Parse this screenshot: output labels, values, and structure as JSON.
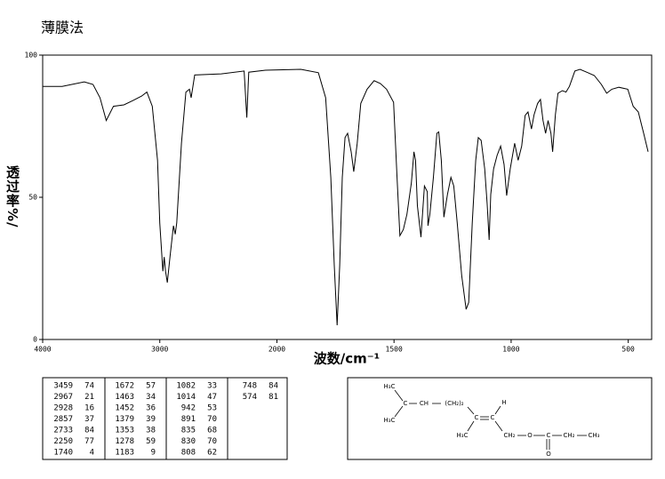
{
  "chart_data": {
    "type": "line",
    "title": "薄膜法",
    "xlabel": "波数/cm⁻¹",
    "ylabel": "透过率%/",
    "xscale": "piecewise",
    "xlim": [
      4000,
      400
    ],
    "xticks": [
      4000,
      3000,
      2000,
      1500,
      1000,
      500
    ],
    "ylim": [
      0,
      100
    ],
    "yticks": [
      0,
      50,
      100
    ],
    "series": [
      {
        "color": "#000000",
        "x": [
          4000,
          3834,
          3645,
          3570,
          3510,
          3457,
          3396,
          3306,
          3230,
          3155,
          3110,
          3064,
          3019,
          3000,
          2974,
          2962,
          2951,
          2936,
          2913,
          2883,
          2868,
          2855,
          2815,
          2777,
          2747,
          2732,
          2702,
          2475,
          2280,
          2257,
          2240,
          2098,
          1898,
          1823,
          1792,
          1770,
          1755,
          1743,
          1732,
          1721,
          1709,
          1698,
          1683,
          1672,
          1657,
          1642,
          1615,
          1585,
          1558,
          1532,
          1502,
          1487,
          1475,
          1460,
          1445,
          1426,
          1415,
          1408,
          1400,
          1385,
          1370,
          1358,
          1355,
          1347,
          1332,
          1317,
          1309,
          1298,
          1287,
          1272,
          1257,
          1245,
          1230,
          1211,
          1192,
          1181,
          1166,
          1151,
          1140,
          1128,
          1113,
          1102,
          1094,
          1087,
          1075,
          1060,
          1045,
          1030,
          1019,
          1004,
          985,
          970,
          955,
          940,
          928,
          913,
          902,
          887,
          875,
          864,
          853,
          842,
          830,
          823,
          811,
          800,
          781,
          766,
          751,
          728,
          706,
          672,
          645,
          615,
          592,
          570,
          540,
          502,
          479,
          457,
          434,
          415
        ],
        "values": [
          89,
          89,
          90.6,
          89.7,
          85,
          77,
          82,
          82.5,
          84,
          85.6,
          87,
          82,
          63,
          41,
          24,
          29,
          24,
          20,
          29,
          40,
          37,
          41,
          69,
          87,
          88,
          85,
          93,
          93.4,
          94.4,
          78,
          94,
          94.7,
          95,
          93.8,
          85,
          57,
          26,
          5,
          26,
          57,
          71,
          72.5,
          66,
          59,
          69,
          83,
          88,
          91,
          90,
          88,
          83.4,
          57,
          36.5,
          38.7,
          44,
          55,
          66,
          63,
          47,
          36,
          54,
          52,
          40,
          44,
          57,
          72.5,
          73,
          63,
          43,
          51,
          57,
          54,
          41,
          22.5,
          10.6,
          13,
          41,
          63,
          71,
          70,
          60,
          47.5,
          35,
          51,
          60,
          64.7,
          68,
          61.5,
          50.6,
          60,
          69,
          63,
          68,
          78.8,
          80,
          74,
          79,
          83,
          84.4,
          77,
          72.5,
          77,
          72.5,
          66,
          79,
          86.6,
          87.5,
          87,
          89,
          94.4,
          95,
          93.8,
          92.8,
          89.7,
          86.6,
          88,
          88.7,
          88,
          82,
          80,
          72.5,
          66
        ]
      }
    ]
  },
  "peak_table": {
    "columns": [
      [
        [
          3459,
          74
        ],
        [
          2967,
          21
        ],
        [
          2928,
          16
        ],
        [
          2857,
          37
        ],
        [
          2733,
          84
        ],
        [
          2250,
          77
        ],
        [
          1740,
          4
        ]
      ],
      [
        [
          1672,
          57
        ],
        [
          1463,
          34
        ],
        [
          1452,
          36
        ],
        [
          1379,
          39
        ],
        [
          1353,
          38
        ],
        [
          1278,
          59
        ],
        [
          1183,
          9
        ]
      ],
      [
        [
          1082,
          33
        ],
        [
          1014,
          47
        ],
        [
          942,
          53
        ],
        [
          891,
          70
        ],
        [
          835,
          68
        ],
        [
          830,
          70
        ],
        [
          808,
          62
        ]
      ],
      [
        [
          748,
          84
        ],
        [
          574,
          81
        ]
      ]
    ]
  },
  "structure": {
    "labels": [
      "H₃C",
      "H₃C",
      "C",
      "CH",
      "(CH₂)₂",
      "C",
      "C",
      "H",
      "H₃C",
      "CH₂",
      "O",
      "C",
      "CH₂",
      "CH₃",
      "O"
    ]
  }
}
